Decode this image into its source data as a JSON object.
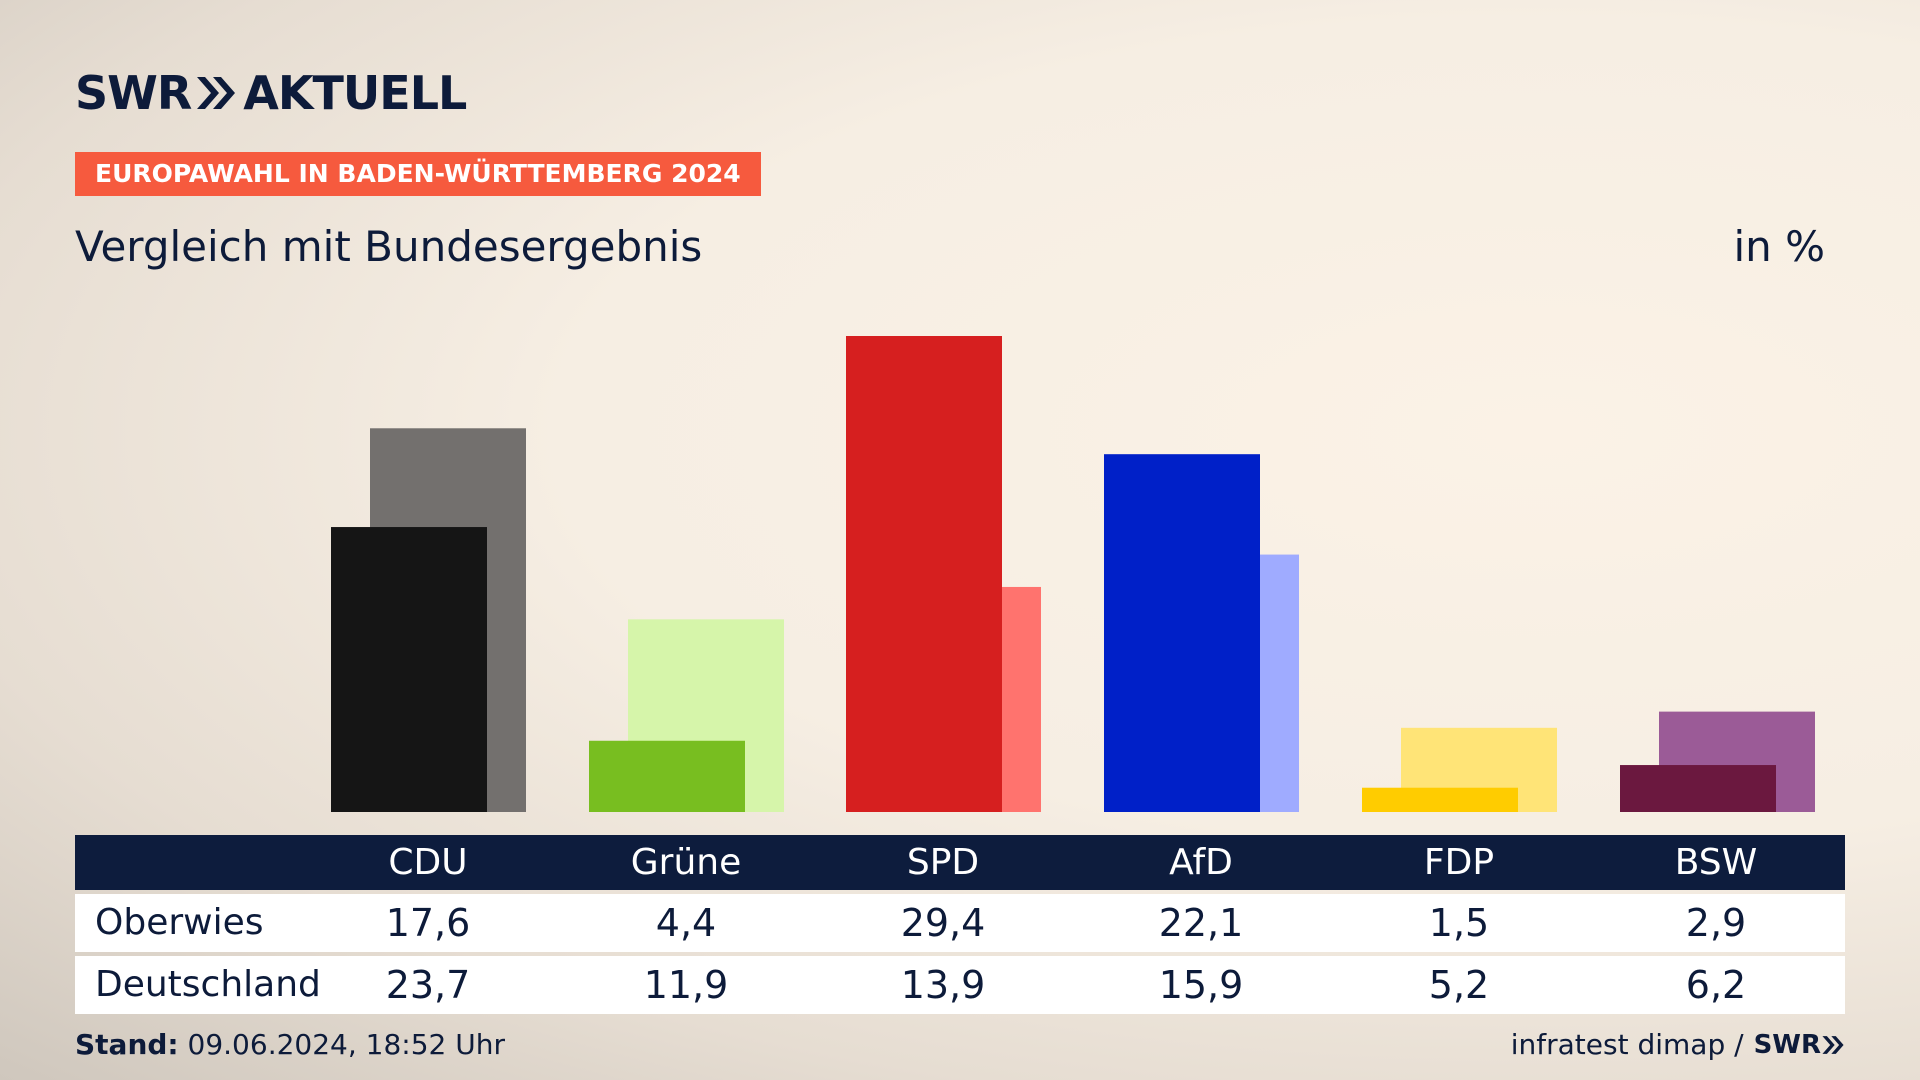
{
  "header": {
    "logo_left": "SWR",
    "logo_right": "AKTUELL",
    "tag": "EUROPAWAHL IN BADEN-WÜRTTEMBERG 2024",
    "subtitle": "Vergleich mit Bundesergebnis",
    "unit": "in %"
  },
  "chart_data": {
    "type": "bar",
    "categories": [
      "CDU",
      "Grüne",
      "SPD",
      "AfD",
      "FDP",
      "BSW"
    ],
    "series": [
      {
        "name": "Oberwies",
        "values": [
          17.6,
          4.4,
          29.4,
          22.1,
          1.5,
          2.9
        ]
      },
      {
        "name": "Deutschland",
        "values": [
          23.7,
          11.9,
          13.9,
          15.9,
          5.2,
          6.2
        ]
      }
    ],
    "ylim": [
      0,
      30
    ],
    "grid": false,
    "colors_local": [
      "#151515",
      "#78be20",
      "#d61f1f",
      "#0020c8",
      "#ffcc00",
      "#6b183f"
    ],
    "colors_national": [
      "#73706e",
      "#d6f5aa",
      "#ff736e",
      "#9fabff",
      "#ffe477",
      "#9b5b97"
    ]
  },
  "table": {
    "rows": [
      {
        "label": "Oberwies",
        "values": [
          "17,6",
          "4,4",
          "29,4",
          "22,1",
          "1,5",
          "2,9"
        ]
      },
      {
        "label": "Deutschland",
        "values": [
          "23,7",
          "11,9",
          "13,9",
          "15,9",
          "5,2",
          "6,2"
        ]
      }
    ]
  },
  "footer": {
    "stand_label": "Stand:",
    "stand_value": "09.06.2024, 18:52 Uhr",
    "source": "infratest dimap /",
    "source_logo": "SWR"
  }
}
